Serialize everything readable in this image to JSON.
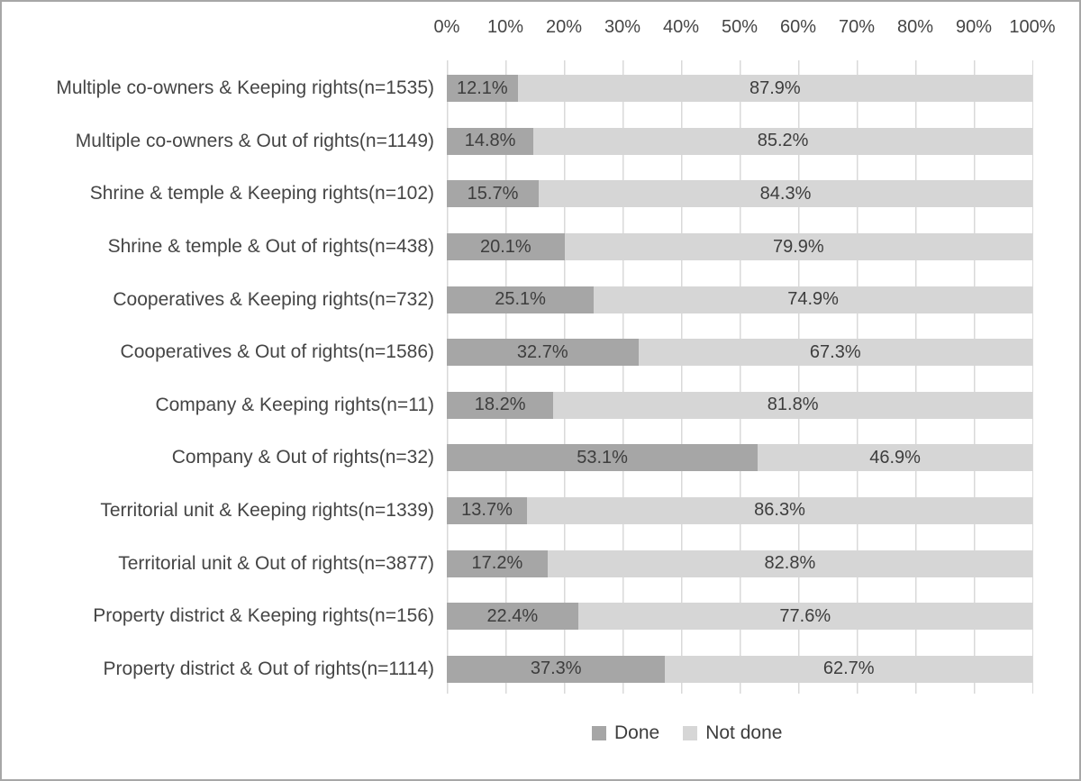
{
  "chart_data": {
    "type": "bar",
    "orientation": "horizontal",
    "stacked": true,
    "title": "",
    "categories": [
      "Multiple co-owners & Keeping rights(n=1535)",
      "Multiple co-owners & Out of rights(n=1149)",
      "Shrine & temple & Keeping rights(n=102)",
      "Shrine & temple & Out of rights(n=438)",
      "Cooperatives & Keeping rights(n=732)",
      "Cooperatives & Out of rights(n=1586)",
      "Company & Keeping rights(n=11)",
      "Company & Out of rights(n=32)",
      "Territorial unit & Keeping rights(n=1339)",
      "Territorial unit & Out of rights(n=3877)",
      "Property district & Keeping rights(n=156)",
      "Property district & Out of rights(n=1114)"
    ],
    "series": [
      {
        "name": "Done",
        "color": "#a6a6a6",
        "values": [
          12.1,
          14.8,
          15.7,
          20.1,
          25.1,
          32.7,
          18.2,
          53.1,
          13.7,
          17.2,
          22.4,
          37.3
        ],
        "labels": [
          "12.1%",
          "14.8%",
          "15.7%",
          "20.1%",
          "25.1%",
          "32.7%",
          "18.2%",
          "53.1%",
          "13.7%",
          "17.2%",
          "22.4%",
          "37.3%"
        ]
      },
      {
        "name": "Not done",
        "color": "#d6d6d6",
        "values": [
          87.9,
          85.2,
          84.3,
          79.9,
          74.9,
          67.3,
          81.8,
          46.9,
          86.3,
          82.8,
          77.6,
          62.7
        ],
        "labels": [
          "87.9%",
          "85.2%",
          "84.3%",
          "79.9%",
          "74.9%",
          "67.3%",
          "81.8%",
          "46.9%",
          "86.3%",
          "82.8%",
          "77.6%",
          "62.7%"
        ]
      }
    ],
    "x_axis": {
      "ticks": [
        "0%",
        "10%",
        "20%",
        "30%",
        "40%",
        "50%",
        "60%",
        "70%",
        "80%",
        "90%",
        "100%"
      ],
      "min": 0,
      "max": 100,
      "position": "top"
    },
    "grid": "vertical",
    "gridline_color": "#d9d9d9",
    "legend_position": "bottom"
  }
}
